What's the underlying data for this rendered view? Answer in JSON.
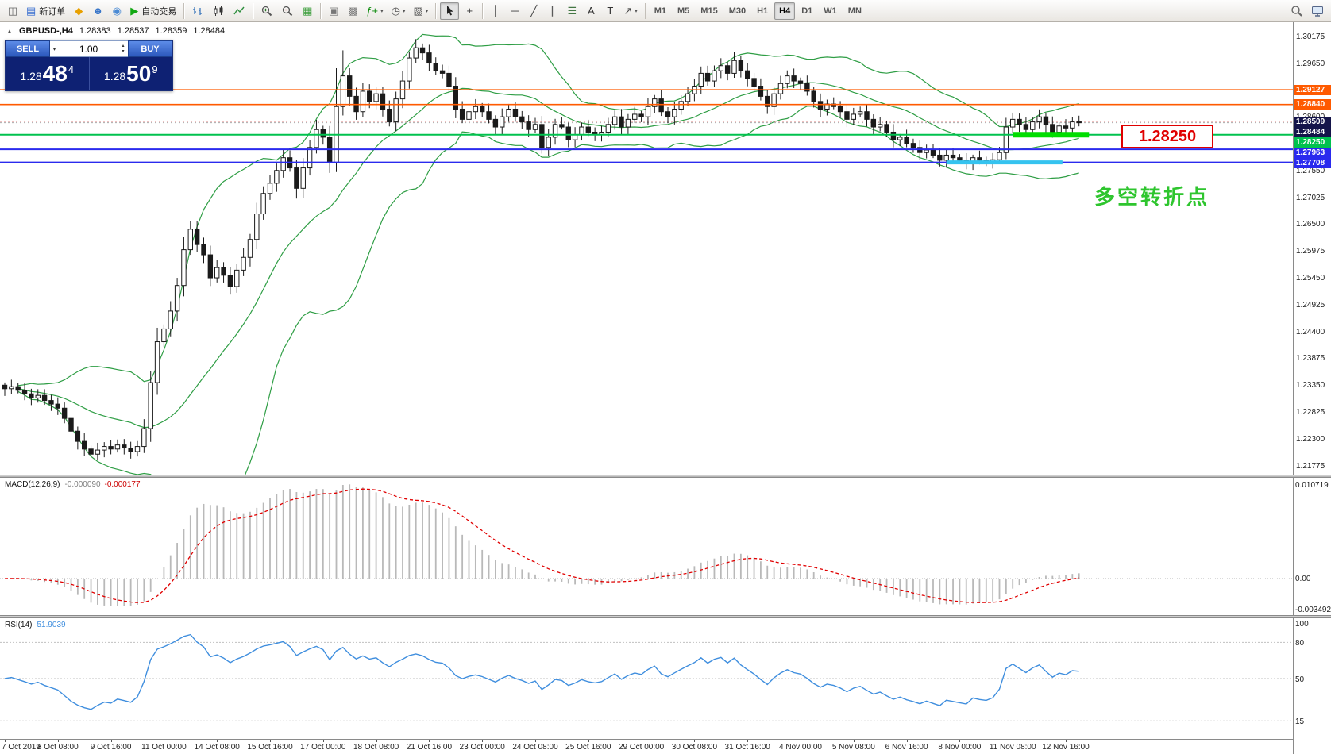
{
  "icons": {
    "dropdown_caret": "▾",
    "stepper_up": "▴",
    "stepper_down": "▾",
    "collapse_marker": "▲"
  },
  "toolbar": {
    "groups": [
      {
        "name": "file",
        "items": [
          {
            "name": "new-chart",
            "icon": "new-chart"
          },
          {
            "name": "new-order",
            "icon": "new-order",
            "label": "新订单"
          },
          {
            "name": "market-watch",
            "icon": "market"
          },
          {
            "name": "community",
            "icon": "community"
          },
          {
            "name": "support",
            "icon": "support"
          },
          {
            "name": "auto-trading",
            "icon": "auto-trading",
            "label": "自动交易"
          }
        ]
      },
      {
        "name": "chart-type",
        "items": [
          {
            "name": "bar-chart",
            "icon": "bars"
          },
          {
            "name": "candlestick-chart",
            "icon": "candles"
          },
          {
            "name": "line-chart",
            "icon": "linechart"
          }
        ]
      },
      {
        "name": "zoom",
        "items": [
          {
            "name": "zoom-in",
            "icon": "zoomin"
          },
          {
            "name": "zoom-out",
            "icon": "zoomout"
          },
          {
            "name": "tile-windows",
            "icon": "tile"
          }
        ]
      },
      {
        "name": "windows",
        "items": [
          {
            "name": "cascade-windows",
            "icon": "cascade"
          },
          {
            "name": "arrange-windows",
            "icon": "arrange"
          },
          {
            "name": "indicators-list",
            "icon": "findicator",
            "dropdown": true
          },
          {
            "name": "periods-menu",
            "icon": "clock",
            "dropdown": true
          },
          {
            "name": "templates-menu",
            "icon": "template",
            "dropdown": true
          }
        ]
      },
      {
        "name": "cursor-tools",
        "items": [
          {
            "name": "cursor",
            "icon": "cursor",
            "active": true
          },
          {
            "name": "crosshair",
            "icon": "crosshair"
          }
        ]
      },
      {
        "name": "draw-tools",
        "items": [
          {
            "name": "vertical-line-tool",
            "icon": "vline"
          },
          {
            "name": "horizontal-line-tool",
            "icon": "hline"
          },
          {
            "name": "trendline-tool",
            "icon": "tline"
          },
          {
            "name": "channel-tool",
            "icon": "channel"
          },
          {
            "name": "fibonacci-tool",
            "icon": "fibo"
          },
          {
            "name": "text-tool",
            "icon": "textA"
          },
          {
            "name": "label-tool",
            "icon": "textT"
          },
          {
            "name": "arrows-tool",
            "icon": "arrow",
            "dropdown": true
          }
        ]
      },
      {
        "name": "timeframes",
        "items": [
          {
            "name": "tf-m1",
            "label": "M1"
          },
          {
            "name": "tf-m5",
            "label": "M5"
          },
          {
            "name": "tf-m15",
            "label": "M15"
          },
          {
            "name": "tf-m30",
            "label": "M30"
          },
          {
            "name": "tf-h1",
            "label": "H1"
          },
          {
            "name": "tf-h4",
            "label": "H4",
            "active": true
          },
          {
            "name": "tf-d1",
            "label": "D1"
          },
          {
            "name": "tf-w1",
            "label": "W1"
          },
          {
            "name": "tf-mn",
            "label": "MN"
          }
        ]
      }
    ],
    "right_items": [
      {
        "name": "search",
        "icon": "search"
      },
      {
        "name": "terminal",
        "icon": "monitor"
      }
    ]
  },
  "chart": {
    "symbol_line": {
      "symbol": "GBPUSD-,H4",
      "open": "1.28383",
      "high": "1.28537",
      "low": "1.28359",
      "close": "1.28484"
    },
    "trade_panel": {
      "sell_label": "SELL",
      "buy_label": "BUY",
      "volume": "1.00",
      "sell_price": {
        "int": "1.28",
        "pips": "48",
        "point": "4"
      },
      "buy_price": {
        "int": "1.28",
        "pips": "50",
        "point": "9"
      }
    },
    "callout": {
      "text": "1.28250"
    },
    "annotation": {
      "text": "多空转折点",
      "color": "#2ec52e"
    }
  },
  "chart_data": {
    "type": "candlestick",
    "symbol": "GBPUSD",
    "timeframe": "H4",
    "price_range": {
      "max": 1.3045,
      "min": 1.216
    },
    "first_open": 1.2335,
    "closes": [
      1.2328,
      1.2332,
      1.2325,
      1.2318,
      1.231,
      1.2315,
      1.2305,
      1.2298,
      1.229,
      1.227,
      1.2245,
      1.2225,
      1.221,
      1.22,
      1.2208,
      1.2215,
      1.221,
      1.2218,
      1.2212,
      1.2205,
      1.2215,
      1.225,
      1.234,
      1.242,
      1.2445,
      1.248,
      1.253,
      1.26,
      1.264,
      1.261,
      1.259,
      1.2545,
      1.2565,
      1.255,
      1.2528,
      1.256,
      1.2585,
      1.262,
      1.267,
      1.271,
      1.273,
      1.2755,
      1.278,
      1.276,
      1.272,
      1.276,
      1.28,
      1.2835,
      1.282,
      1.277,
      1.288,
      1.294,
      1.29,
      1.287,
      1.291,
      1.289,
      1.2905,
      1.2875,
      1.285,
      1.2895,
      1.293,
      1.2975,
      1.2995,
      1.2985,
      1.2965,
      1.295,
      1.2945,
      1.292,
      1.2875,
      1.2855,
      1.287,
      1.288,
      1.287,
      1.2855,
      1.284,
      1.286,
      1.2875,
      1.286,
      1.285,
      1.2835,
      1.2845,
      1.28,
      1.282,
      1.2845,
      1.284,
      1.2815,
      1.2825,
      1.284,
      1.283,
      1.2825,
      1.283,
      1.2845,
      1.286,
      1.284,
      1.2855,
      1.2865,
      1.286,
      1.288,
      1.2895,
      1.287,
      1.286,
      1.2875,
      1.289,
      1.2905,
      1.292,
      1.2945,
      1.293,
      1.295,
      1.296,
      1.2945,
      1.297,
      1.295,
      1.2935,
      1.292,
      1.29,
      1.288,
      1.2905,
      1.2925,
      1.294,
      1.293,
      1.2925,
      1.291,
      1.289,
      1.2875,
      1.2885,
      1.288,
      1.287,
      1.2855,
      1.2865,
      1.287,
      1.2855,
      1.284,
      1.2845,
      1.283,
      1.2815,
      1.282,
      1.2808,
      1.28,
      1.279,
      1.2795,
      1.2785,
      1.2775,
      1.2785,
      1.278,
      1.2775,
      1.277,
      1.278,
      1.2775,
      1.2772,
      1.2776,
      1.279,
      1.284,
      1.2855,
      1.2845,
      1.2835,
      1.285,
      1.286,
      1.2845,
      1.283,
      1.2842,
      1.2838,
      1.285,
      1.28484
    ],
    "wick_overrides": {
      "13": {
        "low": 1.2194
      },
      "44": {
        "low": 1.27
      },
      "50": {
        "high": 1.2955,
        "low": 1.2752
      },
      "51": {
        "high": 1.299
      },
      "62": {
        "high": 1.3012
      },
      "81": {
        "low": 1.2788
      },
      "150": {
        "low": 1.2768
      },
      "151": {
        "high": 1.2858
      }
    },
    "levels": [
      {
        "price": 1.29127,
        "label": "1.29127",
        "color": "#ff5a00"
      },
      {
        "price": 1.2884,
        "label": "1.28840",
        "color": "#ff5a00"
      },
      {
        "price": 1.2825,
        "label": "1.28250",
        "color": "#00c24e"
      },
      {
        "price": 1.27963,
        "label": "1.27963",
        "color": "#2a2aee"
      },
      {
        "price": 1.27708,
        "label": "1.27708",
        "color": "#2a2aee"
      }
    ],
    "ask": {
      "price": 1.28509,
      "label": "1.28509",
      "tag_bg": "#14144a"
    },
    "bid": {
      "price": 1.28484,
      "label": "1.28484",
      "tag_bg": "#14144a"
    },
    "highlight_segments": [
      {
        "price": 1.2825,
        "from_bar": 152,
        "to_bar": 163.5,
        "color": "#00dd00",
        "width": 7
      },
      {
        "price": 1.27708,
        "from_bar": 142,
        "to_bar": 159.5,
        "color": "#35c3ef",
        "width": 5
      }
    ],
    "indicators": {
      "bollinger": {
        "period": 20,
        "deviation": 2,
        "color": "#2f9e45"
      },
      "macd": {
        "label": "MACD(12,26,9)",
        "main_value": "-0.000090",
        "signal_value": "-0.000177",
        "axis_labels": [
          "0.010719",
          "0.00",
          "-0.003492"
        ],
        "histogram_color": "#b9b9b9",
        "signal_color": "#e00000"
      },
      "rsi": {
        "label": "RSI(14)",
        "value": "51.9039",
        "levels": [
          80,
          50,
          15
        ],
        "axis_labels": [
          "100",
          "80",
          "50",
          "15"
        ],
        "line_color": "#3f8ede"
      }
    },
    "y_axis_labels": [
      "1.30175",
      "1.29650",
      "1.29125",
      "1.28600",
      "1.28075",
      "1.27550",
      "1.27025",
      "1.26500",
      "1.25975",
      "1.25450",
      "1.24925",
      "1.24400",
      "1.23875",
      "1.23350",
      "1.22825",
      "1.22300",
      "1.21775"
    ],
    "x_axis_labels": [
      "7 Oct 2019",
      "8 Oct 08:00",
      "9 Oct 16:00",
      "11 Oct 00:00",
      "14 Oct 08:00",
      "15 Oct 16:00",
      "17 Oct 00:00",
      "18 Oct 08:00",
      "21 Oct 16:00",
      "23 Oct 00:00",
      "24 Oct 08:00",
      "25 Oct 16:00",
      "29 Oct 00:00",
      "30 Oct 08:00",
      "31 Oct 16:00",
      "4 Nov 00:00",
      "5 Nov 08:00",
      "6 Nov 16:00",
      "8 Nov 00:00",
      "11 Nov 08:00",
      "12 Nov 16:00"
    ]
  }
}
